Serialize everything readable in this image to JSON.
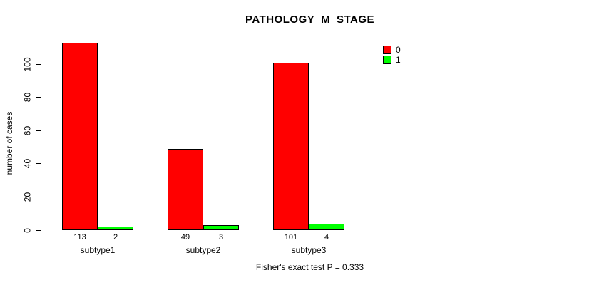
{
  "title": "PATHOLOGY_M_STAGE",
  "footer": "Fisher's exact test P = 0.333",
  "chart_data": {
    "type": "bar",
    "grouped": true,
    "categories": [
      "subtype1",
      "subtype2",
      "subtype3"
    ],
    "series": [
      {
        "name": "0",
        "color": "#ff0000",
        "values": [
          113,
          49,
          101
        ]
      },
      {
        "name": "1",
        "color": "#00ff00",
        "values": [
          2,
          3,
          4
        ]
      }
    ],
    "title": "PATHOLOGY_M_STAGE",
    "xlabel": "",
    "ylabel": "number of cases",
    "yticks": [
      0,
      20,
      40,
      60,
      80,
      100
    ],
    "ylim": [
      0,
      113
    ],
    "bar_value_labels": [
      [
        "113",
        "2"
      ],
      [
        "49",
        "3"
      ],
      [
        "101",
        "4"
      ]
    ],
    "bar_border_color": "#000000",
    "grid": false,
    "legend_position": "top-right",
    "legend_entries": [
      "0",
      "1"
    ],
    "annotation": "Fisher's exact test P = 0.333"
  }
}
